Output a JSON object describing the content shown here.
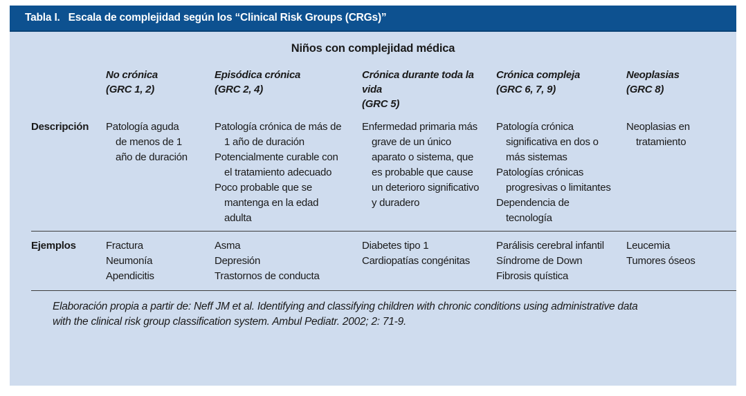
{
  "table": {
    "title_prefix": "Tabla I.",
    "title_text": "Escala de complejidad según los “Clinical Risk Groups (CRGs)”",
    "subtitle": "Niños con complejidad médica",
    "columns": [
      {
        "name": "No crónica",
        "grc": "(GRC 1, 2)"
      },
      {
        "name": "Episódica crónica",
        "grc": "(GRC 2, 4)"
      },
      {
        "name": "Crónica durante toda la vida",
        "grc": "(GRC 5)"
      },
      {
        "name": "Crónica compleja",
        "grc": "(GRC 6, 7, 9)"
      },
      {
        "name": "Neoplasias",
        "grc": "(GRC 8)"
      }
    ],
    "rows": [
      {
        "label": "Descripción",
        "cells": [
          [
            "Patología aguda de menos de 1 año de duración"
          ],
          [
            "Patología crónica de más de 1 año de duración",
            "Potencialmente curable con el tratamiento adecuado",
            "Poco probable que se mantenga en la edad adulta"
          ],
          [
            "Enfermedad primaria más grave de un único aparato o sistema, que es probable que cause un deterioro significativo y duradero"
          ],
          [
            "Patología crónica significativa en dos o más sistemas",
            "Patologías crónicas progresivas o limitantes",
            "Dependencia de tecnología"
          ],
          [
            "Neoplasias en tratamiento"
          ]
        ]
      },
      {
        "label": "Ejemplos",
        "cells": [
          [
            "Fractura",
            "Neumonía",
            "Apendicitis"
          ],
          [
            "Asma",
            "Depresión",
            "Trastornos de conducta"
          ],
          [
            "Diabetes tipo 1",
            "Cardiopatías congénitas"
          ],
          [
            "Parálisis cerebral infantil",
            "Síndrome de Down",
            "Fibrosis quística"
          ],
          [
            "Leucemia",
            "Tumores óseos"
          ]
        ]
      }
    ],
    "footnote_line1": "Elaboración propia a partir de: Neff JM et al. Identifying and classifying children with chronic conditions using administrative data",
    "footnote_line2": "with the clinical risk group classification system. Ambul Pediatr. 2002; 2: 71-9.",
    "colors": {
      "header_bar": "#0d5190",
      "panel_background": "#cfdcee",
      "rule": "#3d3d3d"
    }
  }
}
